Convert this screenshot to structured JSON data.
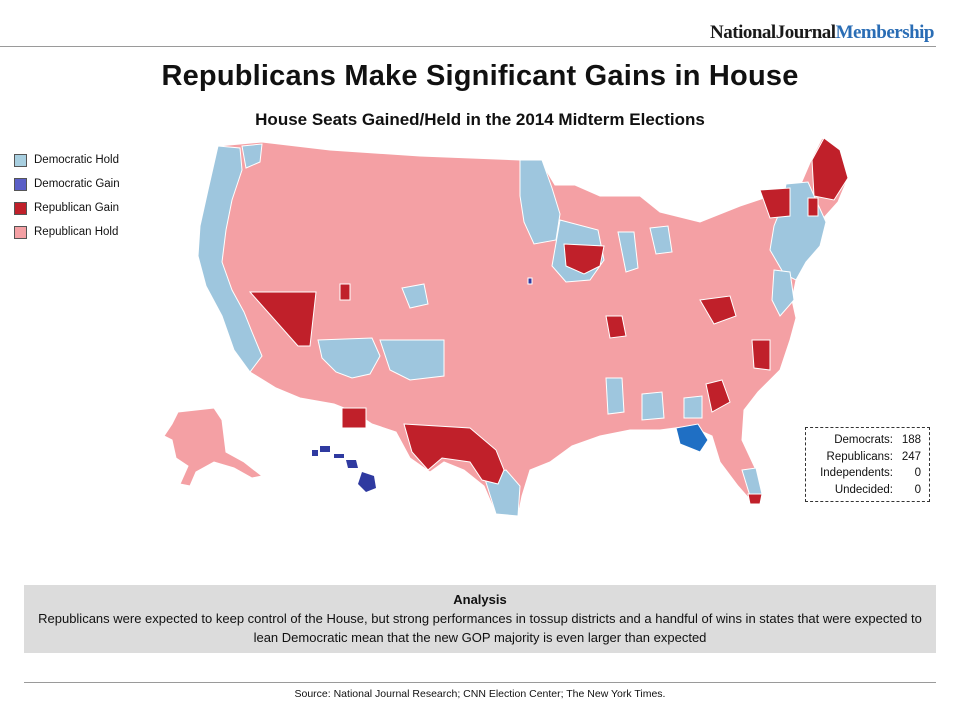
{
  "brand": {
    "part1": "NationalJournal",
    "part2": "Membership"
  },
  "title": "Republicans Make Significant Gains in House",
  "subtitle": "House Seats Gained/Held in the 2014 Midterm Elections",
  "legend": [
    {
      "label": "Democratic Hold",
      "color": "#a8cfe0"
    },
    {
      "label": "Democratic Gain",
      "color": "#5b5fc7"
    },
    {
      "label": "Republican Gain",
      "color": "#c0202a"
    },
    {
      "label": "Republican Hold",
      "color": "#f4a0a4"
    }
  ],
  "tally": [
    {
      "label": "Democrats:",
      "value": "188"
    },
    {
      "label": "Republicans:",
      "value": "247"
    },
    {
      "label": "Independents:",
      "value": "0"
    },
    {
      "label": "Undecided:",
      "value": "0"
    }
  ],
  "analysis": {
    "heading": "Analysis",
    "body": "Republicans were expected to keep control of the House, but strong performances in tossup districts and a handful of wins in states that were expected to lean Democratic mean that the new GOP majority is even larger than expected"
  },
  "source": "Source: National Journal Research; CNN Election Center; The New York Times.",
  "map_colors": {
    "dem_hold": "#9ec6de",
    "dem_gain": "#2f3aa0",
    "dem_gain_fl": "#1f6fc4",
    "rep_gain": "#c0202a",
    "rep_hold": "#f4a0a4",
    "border": "#ffffff"
  }
}
